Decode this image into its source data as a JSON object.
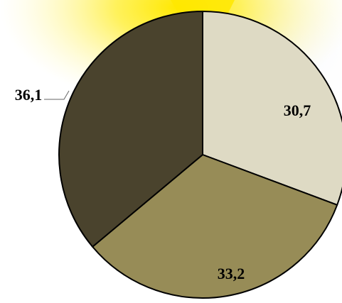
{
  "chart_data": {
    "type": "pie",
    "start_angle_deg": 0,
    "direction": "clockwise",
    "slices": [
      {
        "label": "30,7",
        "value": 30.7,
        "color": "#DEDAC4"
      },
      {
        "label": "33,2",
        "value": 33.2,
        "color": "#978C57"
      },
      {
        "label": "36,1",
        "value": 36.1,
        "color": "#4A432D"
      }
    ],
    "outline_color": "#000000",
    "legend": "none"
  },
  "background": {
    "glow_color": "#FFE800",
    "backdrop_color": "#EEF0F6"
  }
}
